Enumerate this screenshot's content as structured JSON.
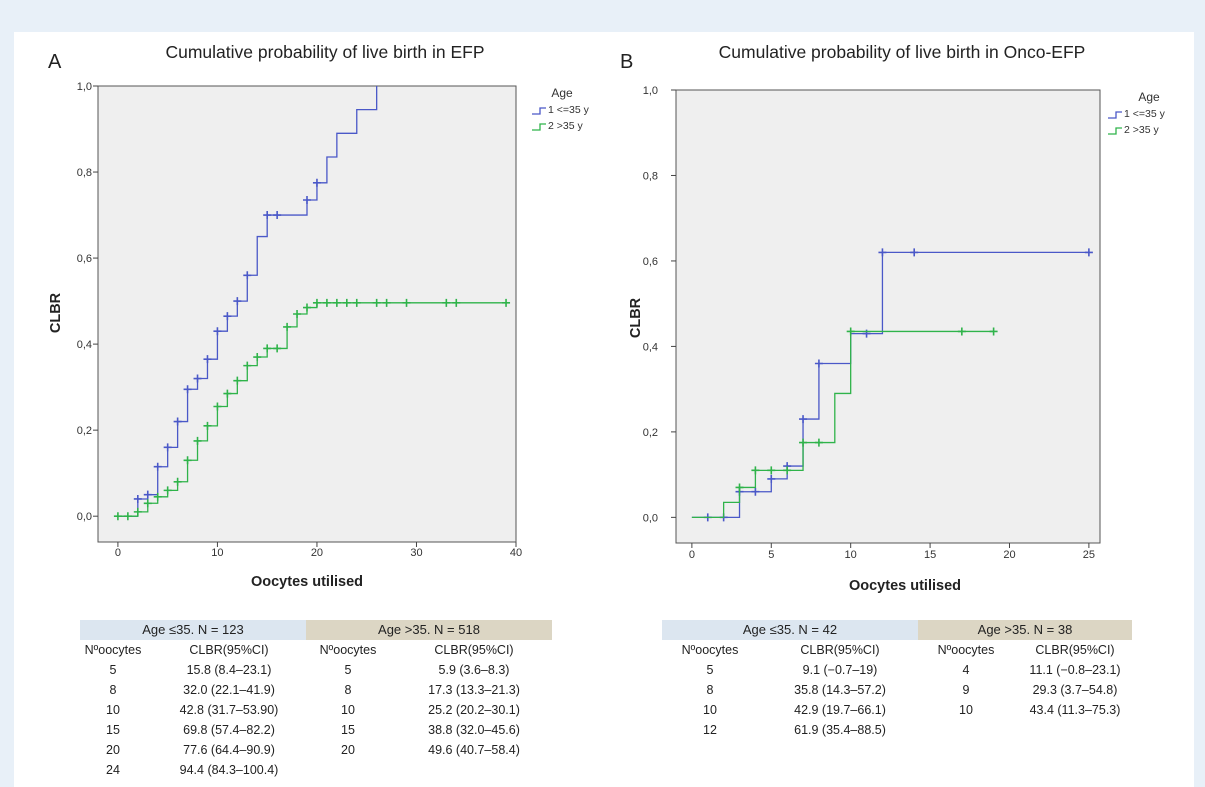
{
  "chart_data": [
    {
      "type": "line",
      "panel_label": "A",
      "title": "Cumulative probability of live birth in EFP",
      "xlabel": "Oocytes utilised",
      "ylabel": "CLBR",
      "xlim": [
        -2,
        40
      ],
      "ylim": [
        -0.06,
        1.0
      ],
      "xticks": [
        0,
        10,
        20,
        30,
        40
      ],
      "yticks": [
        0.0,
        0.2,
        0.4,
        0.6,
        0.8,
        1.0
      ],
      "ytick_labels": [
        "0,0",
        "0,2",
        "0,4",
        "0,6",
        "0,8",
        "1,0"
      ],
      "grid": false,
      "legend_title": "Age",
      "legend_position": "top-right",
      "series": [
        {
          "name": "1 <=35 y",
          "color": "#4a58c8",
          "steps": [
            [
              0,
              0
            ],
            [
              2,
              0.04
            ],
            [
              3,
              0.05
            ],
            [
              4,
              0.115
            ],
            [
              5,
              0.16
            ],
            [
              6,
              0.22
            ],
            [
              7,
              0.295
            ],
            [
              8,
              0.32
            ],
            [
              9,
              0.365
            ],
            [
              10,
              0.43
            ],
            [
              11,
              0.465
            ],
            [
              12,
              0.5
            ],
            [
              13,
              0.56
            ],
            [
              14,
              0.65
            ],
            [
              15,
              0.7
            ],
            [
              19,
              0.735
            ],
            [
              20,
              0.775
            ],
            [
              21,
              0.835
            ],
            [
              22,
              0.89
            ],
            [
              24,
              0.945
            ],
            [
              26,
              1.0
            ]
          ],
          "censor": [
            [
              2,
              0.04
            ],
            [
              3,
              0.05
            ],
            [
              4,
              0.115
            ],
            [
              5,
              0.16
            ],
            [
              6,
              0.22
            ],
            [
              7,
              0.295
            ],
            [
              8,
              0.32
            ],
            [
              9,
              0.365
            ],
            [
              10,
              0.43
            ],
            [
              11,
              0.465
            ],
            [
              12,
              0.5
            ],
            [
              13,
              0.56
            ],
            [
              15,
              0.7
            ],
            [
              16,
              0.7
            ],
            [
              19,
              0.735
            ],
            [
              20,
              0.775
            ]
          ]
        },
        {
          "name": "2 >35 y",
          "color": "#2fb34a",
          "steps": [
            [
              0,
              0
            ],
            [
              2,
              0.01
            ],
            [
              3,
              0.03
            ],
            [
              4,
              0.045
            ],
            [
              5,
              0.06
            ],
            [
              6,
              0.08
            ],
            [
              7,
              0.13
            ],
            [
              8,
              0.175
            ],
            [
              9,
              0.21
            ],
            [
              10,
              0.255
            ],
            [
              11,
              0.285
            ],
            [
              12,
              0.315
            ],
            [
              13,
              0.35
            ],
            [
              14,
              0.37
            ],
            [
              15,
              0.39
            ],
            [
              17,
              0.44
            ],
            [
              18,
              0.47
            ],
            [
              19,
              0.485
            ],
            [
              20,
              0.496
            ],
            [
              39,
              0.496
            ]
          ],
          "censor": [
            [
              0,
              0
            ],
            [
              1,
              0
            ],
            [
              2,
              0.01
            ],
            [
              3,
              0.03
            ],
            [
              4,
              0.045
            ],
            [
              5,
              0.06
            ],
            [
              6,
              0.08
            ],
            [
              7,
              0.13
            ],
            [
              8,
              0.175
            ],
            [
              9,
              0.21
            ],
            [
              10,
              0.255
            ],
            [
              11,
              0.285
            ],
            [
              12,
              0.315
            ],
            [
              13,
              0.35
            ],
            [
              14,
              0.37
            ],
            [
              15,
              0.39
            ],
            [
              16,
              0.39
            ],
            [
              17,
              0.44
            ],
            [
              18,
              0.47
            ],
            [
              19,
              0.485
            ],
            [
              20,
              0.496
            ],
            [
              21,
              0.496
            ],
            [
              22,
              0.496
            ],
            [
              23,
              0.496
            ],
            [
              24,
              0.496
            ],
            [
              26,
              0.496
            ],
            [
              27,
              0.496
            ],
            [
              29,
              0.496
            ],
            [
              33,
              0.496
            ],
            [
              34,
              0.496
            ],
            [
              39,
              0.496
            ]
          ]
        }
      ],
      "table": {
        "groups": [
          {
            "header": "Age ≤35. N = 123",
            "header_color": "#dce6f0",
            "col_headers": [
              "Nºoocytes",
              "CLBR(95%CI)"
            ],
            "rows": [
              [
                "5",
                "15.8 (8.4–23.1)"
              ],
              [
                "8",
                "32.0 (22.1–41.9)"
              ],
              [
                "10",
                "42.8 (31.7–53.90)"
              ],
              [
                "15",
                "69.8 (57.4–82.2)"
              ],
              [
                "20",
                "77.6 (64.4–90.9)"
              ],
              [
                "24",
                "94.4 (84.3–100.4)"
              ]
            ]
          },
          {
            "header": "Age >35. N = 518",
            "header_color": "#dcd6c4",
            "col_headers": [
              "Nºoocytes",
              "CLBR(95%CI)"
            ],
            "rows": [
              [
                "5",
                "5.9  (3.6–8.3)"
              ],
              [
                "8",
                "17.3 (13.3–21.3)"
              ],
              [
                "10",
                "25.2 (20.2–30.1)"
              ],
              [
                "15",
                "38.8 (32.0–45.6)"
              ],
              [
                "20",
                "49.6 (40.7–58.4)"
              ]
            ]
          }
        ]
      }
    },
    {
      "type": "line",
      "panel_label": "B",
      "title": "Cumulative probability of live birth in Onco-EFP",
      "xlabel": "Oocytes utilised",
      "ylabel": "CLBR",
      "xlim": [
        -1,
        25.7
      ],
      "ylim": [
        -0.06,
        1.0
      ],
      "xticks": [
        0,
        5,
        10,
        15,
        20,
        25
      ],
      "yticks": [
        0.0,
        0.2,
        0.4,
        0.6,
        0.8,
        1.0
      ],
      "ytick_labels": [
        "0,0",
        "0,2",
        "0,4",
        "0,6",
        "0,8",
        "1,0"
      ],
      "grid": false,
      "legend_title": "Age",
      "legend_position": "top-right",
      "series": [
        {
          "name": "1 <=35 y",
          "color": "#4a58c8",
          "steps": [
            [
              0,
              0
            ],
            [
              3,
              0.06
            ],
            [
              5,
              0.09
            ],
            [
              6,
              0.12
            ],
            [
              7,
              0.23
            ],
            [
              8,
              0.36
            ],
            [
              10,
              0.43
            ],
            [
              12,
              0.62
            ],
            [
              25,
              0.62
            ]
          ],
          "censor": [
            [
              1,
              0
            ],
            [
              2,
              0
            ],
            [
              3,
              0.06
            ],
            [
              4,
              0.06
            ],
            [
              5,
              0.09
            ],
            [
              6,
              0.12
            ],
            [
              7,
              0.23
            ],
            [
              8,
              0.36
            ],
            [
              11,
              0.43
            ],
            [
              12,
              0.62
            ],
            [
              14,
              0.62
            ],
            [
              25,
              0.62
            ]
          ]
        },
        {
          "name": "2 >35 y",
          "color": "#2fb34a",
          "steps": [
            [
              0,
              0
            ],
            [
              2,
              0.035
            ],
            [
              3,
              0.07
            ],
            [
              4,
              0.11
            ],
            [
              7,
              0.175
            ],
            [
              9,
              0.29
            ],
            [
              10,
              0.435
            ],
            [
              19,
              0.435
            ]
          ],
          "censor": [
            [
              3,
              0.07
            ],
            [
              4,
              0.11
            ],
            [
              5,
              0.11
            ],
            [
              6,
              0.11
            ],
            [
              7,
              0.175
            ],
            [
              8,
              0.175
            ],
            [
              10,
              0.435
            ],
            [
              17,
              0.435
            ],
            [
              19,
              0.435
            ]
          ]
        }
      ],
      "table": {
        "groups": [
          {
            "header": "Age ≤35. N = 42",
            "header_color": "#dce6f0",
            "col_headers": [
              "Nºoocytes",
              "CLBR(95%CI)"
            ],
            "rows": [
              [
                "5",
                "9.1 (−0.7–19)"
              ],
              [
                "8",
                "35.8 (14.3–57.2)"
              ],
              [
                "10",
                "42.9 (19.7–66.1)"
              ],
              [
                "12",
                "61.9 (35.4–88.5)"
              ]
            ]
          },
          {
            "header": "Age >35. N = 38",
            "header_color": "#dcd6c4",
            "col_headers": [
              "Nºoocytes",
              "CLBR(95%CI)"
            ],
            "rows": [
              [
                "4",
                "11.1 (−0.8–23.1)"
              ],
              [
                "9",
                "29.3 (3.7–54.8)"
              ],
              [
                "10",
                "43.4 (11.3–75.3)"
              ]
            ]
          }
        ]
      }
    }
  ]
}
